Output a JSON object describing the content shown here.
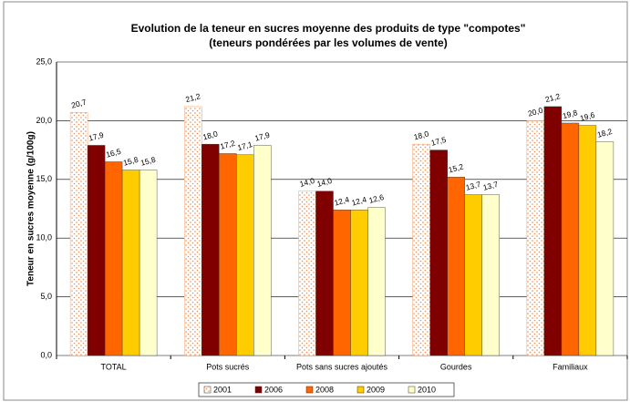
{
  "chart_data": {
    "type": "bar",
    "title": "Evolution de la teneur en sucres moyenne des produits de type \"compotes\"",
    "subtitle": "(teneurs pondérées par les volumes de vente)",
    "y_label": "Teneur en sucres moyenne (g/100g)",
    "categories": [
      "TOTAL",
      "Pots sucrés",
      "Pots sans sucres ajoutés",
      "Gourdes",
      "Familiaux"
    ],
    "series": [
      {
        "name": "2001",
        "color": "#f08a4b",
        "pattern": "dotted",
        "values": [
          20.7,
          21.2,
          14.0,
          18.0,
          20.0
        ],
        "value_labels": [
          "20,7",
          "21,2",
          "14,0",
          "18,0",
          "20,0"
        ]
      },
      {
        "name": "2006",
        "color": "#800000",
        "values": [
          17.9,
          18.0,
          14.0,
          17.5,
          21.2
        ],
        "value_labels": [
          "17,9",
          "18,0",
          "14,0",
          "17,5",
          "21,2"
        ]
      },
      {
        "name": "2008",
        "color": "#ff6600",
        "values": [
          16.5,
          17.2,
          12.4,
          15.2,
          19.8
        ],
        "value_labels": [
          "16,5",
          "17,2",
          "12,4",
          "15,2",
          "19,8"
        ]
      },
      {
        "name": "2009",
        "color": "#ffcc00",
        "values": [
          15.8,
          17.1,
          12.4,
          13.7,
          19.6
        ],
        "value_labels": [
          "15,8",
          "17,1",
          "12,4",
          "13,7",
          "19,6"
        ]
      },
      {
        "name": "2010",
        "color": "#ffffcc",
        "values": [
          15.8,
          17.9,
          12.6,
          13.7,
          18.2
        ],
        "value_labels": [
          "15,8",
          "17,9",
          "12,6",
          "13,7",
          "18,2"
        ]
      }
    ],
    "ylim": [
      0,
      25
    ],
    "yticks": [
      {
        "value": 0,
        "label": "0,0"
      },
      {
        "value": 5,
        "label": "5,0"
      },
      {
        "value": 10,
        "label": "10,0"
      },
      {
        "value": 15,
        "label": "15,0"
      },
      {
        "value": 20,
        "label": "20,0"
      },
      {
        "value": 25,
        "label": "25,0"
      }
    ],
    "grid": true,
    "legend": "bottom"
  }
}
